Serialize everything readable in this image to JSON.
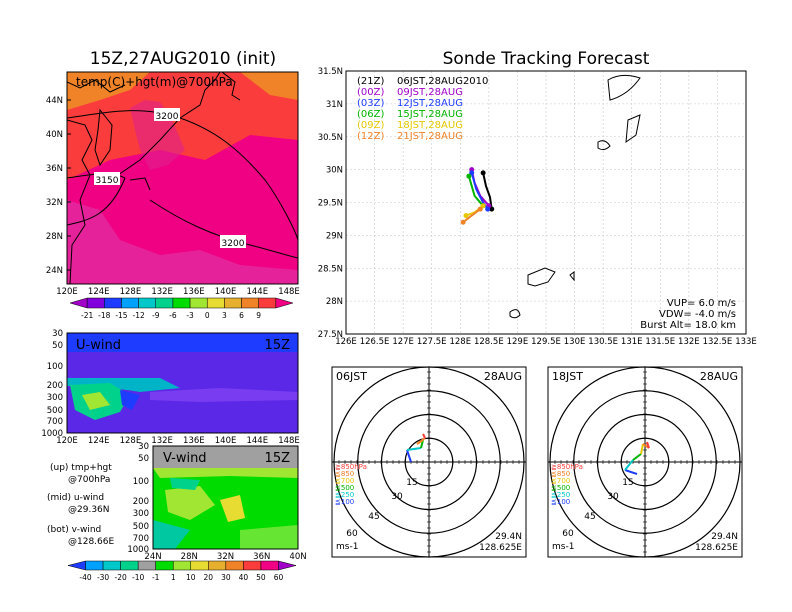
{
  "left_top_title": "15Z,27AUG2010 (init)",
  "right_title": "Sonde Tracking Forecast",
  "map_panel": {
    "label": "temp(C)+hgt(m)@700hPa",
    "lat_ticks": [
      "44N",
      "40N",
      "36N",
      "32N",
      "28N",
      "24N"
    ],
    "lon_ticks": [
      "120E",
      "124E",
      "128E",
      "132E",
      "136E",
      "140E",
      "144E",
      "148E"
    ],
    "contour_labels": [
      "3200",
      "3150",
      "3200"
    ],
    "colorbar_labels": [
      "-21",
      "-18",
      "-15",
      "-12",
      "-9",
      "-6",
      "-3",
      "0",
      "3",
      "6",
      "9"
    ],
    "colorbar_colors": [
      "#a000c8",
      "#8200dc",
      "#1e3cff",
      "#00a0ff",
      "#00c8c8",
      "#00d28c",
      "#00dc00",
      "#a0e632",
      "#e6dc32",
      "#e6af2d",
      "#f08228",
      "#fa3c3c",
      "#f00082"
    ]
  },
  "u_panel": {
    "label": "U-wind",
    "time": "15Z",
    "p_ticks": [
      "30",
      "50",
      "100",
      "200",
      "300",
      "500",
      "700",
      "1000"
    ],
    "lon_ticks": [
      "120E",
      "124E",
      "128E",
      "132E",
      "136E",
      "140E",
      "144E",
      "148E"
    ]
  },
  "v_panel": {
    "label": "V-wind",
    "time": "15Z",
    "p_ticks": [
      "30",
      "50",
      "100",
      "200",
      "300",
      "500",
      "700",
      "1000"
    ],
    "lat_ticks": [
      "24N",
      "28N",
      "32N",
      "36N",
      "40N"
    ]
  },
  "legend_notes": [
    {
      "a": "(up) tmp+hgt",
      "b": "@700hPa"
    },
    {
      "a": "(mid) u-wind",
      "b": "@29.36N"
    },
    {
      "a": "(bot) v-wind",
      "b": "@128.66E"
    }
  ],
  "wind_colorbar": {
    "labels": [
      "-40",
      "-30",
      "-20",
      "-10",
      "-1",
      "1",
      "10",
      "20",
      "30",
      "40",
      "50",
      "60"
    ],
    "colors": [
      "#1e3cff",
      "#00a0ff",
      "#00c8c8",
      "#00d28c",
      "#a0a0a0",
      "#00dc00",
      "#a0e632",
      "#e6dc32",
      "#e6af2d",
      "#f08228",
      "#fa3c3c",
      "#f00082",
      "#a000c8"
    ]
  },
  "track_map": {
    "lat_ticks": [
      "31.5N",
      "31N",
      "30.5N",
      "30N",
      "29.5N",
      "29N",
      "28.5N",
      "28N",
      "27.5N"
    ],
    "lon_ticks": [
      "126E",
      "126.5E",
      "127E",
      "127.5E",
      "128E",
      "128.5E",
      "129E",
      "129.5E",
      "130E",
      "130.5E",
      "131E",
      "131.5E",
      "132E",
      "132.5E",
      "133E"
    ],
    "legend": [
      {
        "z": "(21Z)",
        "t": "06JST,28AUG2010",
        "color": "#000000"
      },
      {
        "z": "(00Z)",
        "t": "09JST,28AUG",
        "color": "#a000c8"
      },
      {
        "z": "(03Z)",
        "t": "12JST,28AUG",
        "color": "#1e3cff"
      },
      {
        "z": "(06Z)",
        "t": "15JST,28AUG",
        "color": "#00b400"
      },
      {
        "z": "(09Z)",
        "t": "18JST,28AUG",
        "color": "#e6c800"
      },
      {
        "z": "(12Z)",
        "t": "21JST,28AUG",
        "color": "#f08228"
      }
    ],
    "params": [
      "VUP= 6.0 m/s",
      "VDW= -4.0 m/s",
      "Burst Alt= 18.0 km"
    ]
  },
  "hodographs": [
    {
      "time": "06JST",
      "date": "28AUG",
      "lat": "29.4N",
      "lon": "128.625E",
      "unit": "ms-1"
    },
    {
      "time": "18JST",
      "date": "28AUG",
      "lat": "29.4N",
      "lon": "128.625E",
      "unit": "ms-1"
    }
  ],
  "hodo_ring_labels": [
    "15",
    "30",
    "45",
    "60"
  ],
  "hodo_levels": [
    {
      "label": "≧850hPa",
      "color": "#fa3c3c"
    },
    {
      "label": "≦850",
      "color": "#f08228"
    },
    {
      "label": "≦700",
      "color": "#e6c800"
    },
    {
      "label": "≦500",
      "color": "#00b400"
    },
    {
      "label": "≦250",
      "color": "#00c8c8"
    },
    {
      "label": "≦100",
      "color": "#1e3cff"
    }
  ],
  "chart_data": [
    {
      "type": "heatmap",
      "title": "15Z,27AUG2010 (init)",
      "annotation": "temp(C)+hgt(m)@700hPa",
      "x_range": [
        120,
        149
      ],
      "y_range": [
        22,
        47
      ],
      "contours": [
        3150,
        3200
      ],
      "colorbar": [
        -21,
        -18,
        -15,
        -12,
        -9,
        -6,
        -3,
        0,
        3,
        6,
        9
      ]
    },
    {
      "type": "heatmap",
      "title": "U-wind",
      "x_range": [
        120,
        149
      ],
      "y_pressure_levels": [
        30,
        50,
        100,
        200,
        300,
        500,
        700,
        1000
      ]
    },
    {
      "type": "heatmap",
      "title": "V-wind",
      "x_range": [
        24,
        40
      ],
      "y_pressure_levels": [
        30,
        50,
        100,
        200,
        300,
        500,
        700,
        1000
      ],
      "colorbar": [
        -40,
        -30,
        -20,
        -10,
        -1,
        1,
        10,
        20,
        30,
        40,
        50,
        60
      ]
    },
    {
      "type": "line",
      "title": "Sonde Tracking Forecast",
      "x_range": [
        126,
        133
      ],
      "y_range": [
        27.5,
        31.5
      ],
      "series": [
        {
          "name": "(21Z) 06JST,28AUG2010",
          "x": [
            128.4,
            128.45,
            128.52,
            128.55
          ],
          "y": [
            29.95,
            29.75,
            29.58,
            29.4
          ]
        },
        {
          "name": "(00Z) 09JST,28AUG",
          "x": [
            128.2,
            128.25,
            128.35,
            128.5
          ],
          "y": [
            30.0,
            29.8,
            29.6,
            29.45
          ]
        },
        {
          "name": "(03Z) 12JST,28AUG",
          "x": [
            128.2,
            128.28,
            128.4,
            128.48
          ],
          "y": [
            29.95,
            29.7,
            29.5,
            29.4
          ]
        },
        {
          "name": "(06Z) 15JST,28AUG",
          "x": [
            128.15,
            128.25,
            128.4
          ],
          "y": [
            29.9,
            29.6,
            29.45
          ]
        },
        {
          "name": "(09Z) 18JST,28AUG",
          "x": [
            128.4,
            128.25,
            128.1
          ],
          "y": [
            29.45,
            29.35,
            29.3
          ]
        },
        {
          "name": "(12Z) 21JST,28AUG",
          "x": [
            128.35,
            128.2,
            128.05
          ],
          "y": [
            29.4,
            29.3,
            29.2
          ]
        }
      ]
    }
  ]
}
